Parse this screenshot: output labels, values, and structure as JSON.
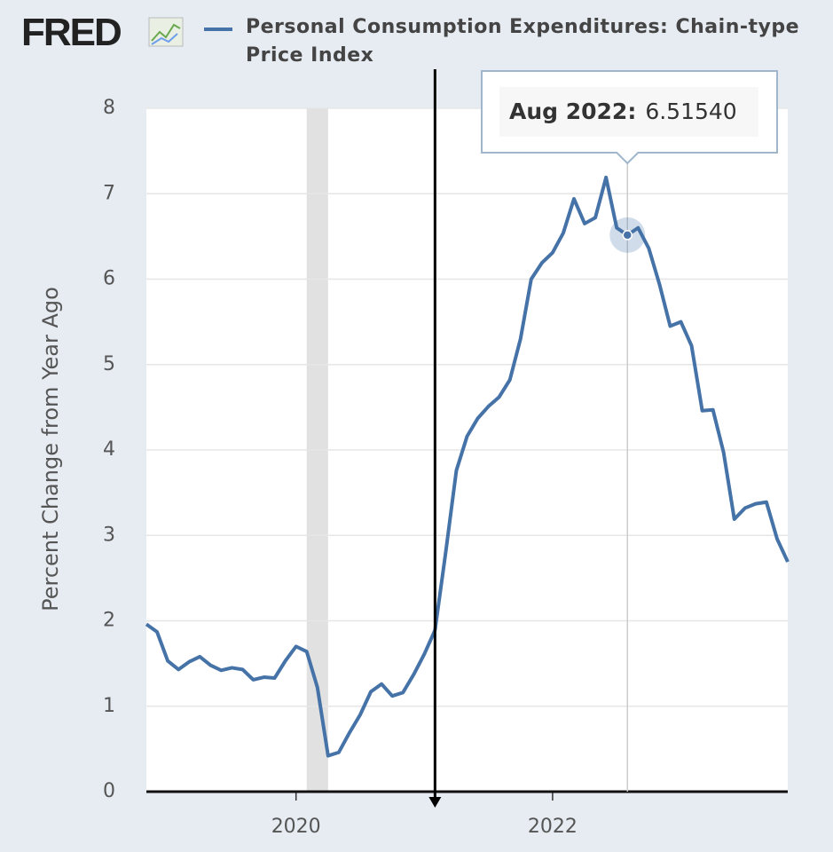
{
  "chart_data": {
    "type": "line",
    "logo": "FRED",
    "y_label": "Percent Change from Year Ago",
    "x": [
      "2018-11",
      "2018-12",
      "2019-01",
      "2019-02",
      "2019-03",
      "2019-04",
      "2019-05",
      "2019-06",
      "2019-07",
      "2019-08",
      "2019-09",
      "2019-10",
      "2019-11",
      "2019-12",
      "2020-01",
      "2020-02",
      "2020-03",
      "2020-04",
      "2020-05",
      "2020-06",
      "2020-07",
      "2020-08",
      "2020-09",
      "2020-10",
      "2020-11",
      "2020-12",
      "2021-01",
      "2021-02",
      "2021-03",
      "2021-04",
      "2021-05",
      "2021-06",
      "2021-07",
      "2021-08",
      "2021-09",
      "2021-10",
      "2021-11",
      "2021-12",
      "2022-01",
      "2022-02",
      "2022-03",
      "2022-04",
      "2022-05",
      "2022-06",
      "2022-07",
      "2022-08",
      "2022-09",
      "2022-10",
      "2022-11",
      "2022-12",
      "2023-01",
      "2023-02",
      "2023-03",
      "2023-04",
      "2023-05",
      "2023-06",
      "2023-07",
      "2023-08",
      "2023-09",
      "2023-10",
      "2023-11"
    ],
    "series": [
      {
        "name": "Personal Consumption Expenditures: Chain-type Price Index",
        "color": "#4572a7",
        "values": [
          1.96,
          1.87,
          1.53,
          1.43,
          1.52,
          1.58,
          1.48,
          1.42,
          1.45,
          1.43,
          1.31,
          1.34,
          1.33,
          1.53,
          1.7,
          1.64,
          1.22,
          0.42,
          0.46,
          0.69,
          0.9,
          1.17,
          1.26,
          1.12,
          1.16,
          1.37,
          1.61,
          1.89,
          2.8,
          3.76,
          4.16,
          4.37,
          4.51,
          4.62,
          4.82,
          5.3,
          6.0,
          6.19,
          6.31,
          6.54,
          6.94,
          6.65,
          6.72,
          7.19,
          6.6,
          6.5154,
          6.6,
          6.36,
          5.94,
          5.45,
          5.5,
          5.22,
          4.46,
          4.47,
          3.97,
          3.19,
          3.32,
          3.37,
          3.39,
          2.96,
          2.69
        ]
      }
    ],
    "xlim": [
      "2018-11",
      "2023-11"
    ],
    "xticks": [
      {
        "value": "2020-01",
        "label": "2020"
      },
      {
        "value": "2022-01",
        "label": "2022"
      }
    ],
    "ylim": [
      0,
      8
    ],
    "yticks": [
      0,
      1,
      2,
      3,
      4,
      5,
      6,
      7,
      8
    ],
    "grid": true,
    "shaded_periods": [
      {
        "start": "2020-02",
        "end": "2020-04"
      }
    ],
    "vertical_marker": "2021-02",
    "tooltip": {
      "index": 45,
      "date": "Aug 2022:",
      "value": 6.5154,
      "value_label": "6.51540"
    }
  }
}
